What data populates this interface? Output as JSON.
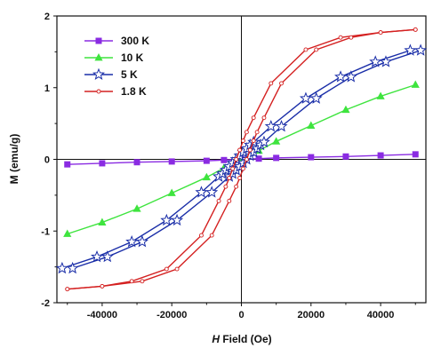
{
  "chart_data": {
    "type": "line",
    "xlabel_italic": "H",
    "xlabel_rest": " Field (Oe)",
    "ylabel": "M (emu/g)",
    "xlim": [
      -53000,
      53000
    ],
    "ylim": [
      -2,
      2
    ],
    "x_ticks": [
      -40000,
      -20000,
      0,
      20000,
      40000
    ],
    "x_tick_labels": [
      "-40000",
      "-20000",
      "0",
      "20000",
      "40000"
    ],
    "y_ticks": [
      -2,
      -1,
      0,
      1,
      2
    ],
    "y_tick_labels": [
      "-2",
      "-1",
      "0",
      "1",
      "2"
    ],
    "grid": false,
    "legend_position": "top-left",
    "series": [
      {
        "name": "300 K",
        "color": "#8a2be2",
        "marker": "square",
        "x": [
          -50000,
          -40000,
          -30000,
          -20000,
          -10000,
          -5000,
          0,
          5000,
          10000,
          20000,
          30000,
          40000,
          50000
        ],
        "y": [
          -0.07,
          -0.055,
          -0.04,
          -0.03,
          -0.02,
          -0.01,
          0.0,
          0.01,
          0.02,
          0.03,
          0.04,
          0.055,
          0.07
        ]
      },
      {
        "name": "10 K",
        "color": "#3ee43e",
        "marker": "triangle",
        "x": [
          -50000,
          -40000,
          -30000,
          -20000,
          -10000,
          -5000,
          0,
          5000,
          10000,
          20000,
          30000,
          40000,
          50000
        ],
        "y": [
          -1.04,
          -0.88,
          -0.69,
          -0.47,
          -0.25,
          -0.12,
          0.0,
          0.12,
          0.25,
          0.47,
          0.69,
          0.88,
          1.04
        ]
      },
      {
        "name": "5 K",
        "color": "#1a2ea8",
        "marker": "star",
        "x": [
          -50000,
          -40000,
          -30000,
          -20000,
          -10000,
          -5000,
          -4000,
          -3000,
          -2000,
          -1000,
          0,
          1000,
          2000,
          3000,
          4000,
          5000,
          10000,
          20000,
          30000,
          40000,
          50000
        ],
        "y": [
          -1.52,
          -1.36,
          -1.15,
          -0.85,
          -0.46,
          -0.24,
          -0.2,
          -0.15,
          -0.1,
          -0.05,
          0.0,
          0.05,
          0.1,
          0.15,
          0.2,
          0.24,
          0.46,
          0.85,
          1.15,
          1.36,
          1.52
        ],
        "hysteresis_offset": 1500
      },
      {
        "name": "1.8 K",
        "color": "#d42020",
        "marker": "circle",
        "x": [
          -50000,
          -40000,
          -30000,
          -20000,
          -10000,
          -5000,
          -3000,
          -2000,
          -1000,
          0,
          1000,
          2000,
          3000,
          5000,
          10000,
          20000,
          30000,
          40000,
          50000
        ],
        "y": [
          -1.81,
          -1.77,
          -1.7,
          -1.53,
          -1.06,
          -0.58,
          -0.38,
          -0.26,
          -0.13,
          0.0,
          0.13,
          0.26,
          0.38,
          0.58,
          1.06,
          1.53,
          1.7,
          1.77,
          1.81
        ],
        "hysteresis_offset": 1500
      }
    ]
  }
}
